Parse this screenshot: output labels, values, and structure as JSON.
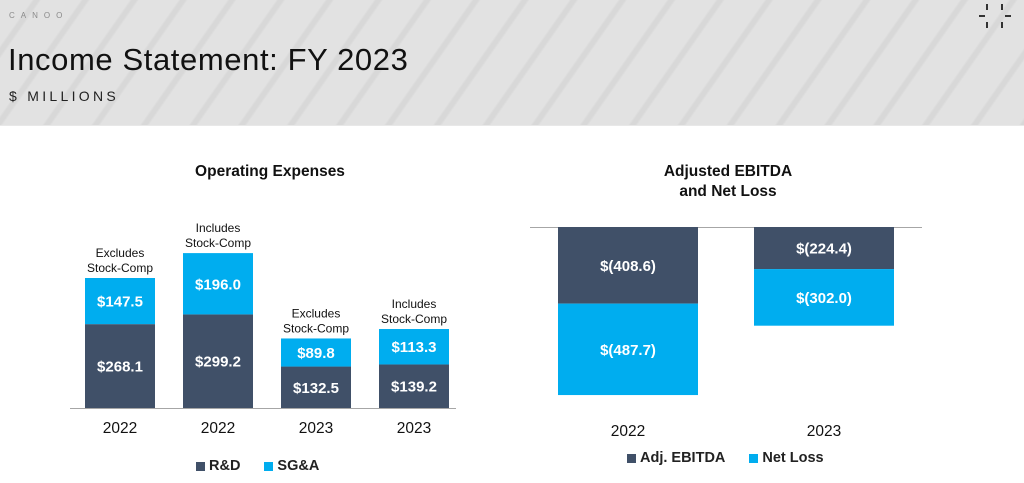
{
  "header": {
    "brand": "CANOO",
    "title": "Income Statement: FY 2023",
    "subtitle": "$ MILLIONS"
  },
  "colors": {
    "dark": "#405068",
    "light": "#00adef",
    "header_bg": "#e2e2e2"
  },
  "chart_data": [
    {
      "type": "bar",
      "stacked": true,
      "title": "Operating Expenses",
      "categories": [
        "2022",
        "2022",
        "2023",
        "2023"
      ],
      "annotations": [
        [
          "Excludes",
          "Stock-Comp"
        ],
        [
          "Includes",
          "Stock-Comp"
        ],
        [
          "Excludes",
          "Stock-Comp"
        ],
        [
          "Includes",
          "Stock-Comp"
        ]
      ],
      "series": [
        {
          "name": "R&D",
          "color": "#405068",
          "values": [
            268.1,
            299.2,
            132.5,
            139.2
          ],
          "labels": [
            "$268.1",
            "$299.2",
            "$132.5",
            "$139.2"
          ]
        },
        {
          "name": "SG&A",
          "color": "#00adef",
          "values": [
            147.5,
            196.0,
            89.8,
            113.3
          ],
          "labels": [
            "$147.5",
            "$196.0",
            "$89.8",
            "$113.3"
          ]
        }
      ],
      "xlabel": "",
      "ylabel": "",
      "grid": false,
      "legend": "bottom-center"
    },
    {
      "type": "bar",
      "stacked": true,
      "title": [
        "Adjusted EBITDA",
        "and Net Loss"
      ],
      "categories": [
        "2022",
        "2023"
      ],
      "series": [
        {
          "name": "Adj. EBITDA",
          "color": "#405068",
          "values": [
            -408.6,
            -224.4
          ],
          "labels": [
            "$(408.6)",
            "$(224.4)"
          ]
        },
        {
          "name": "Net Loss",
          "color": "#00adef",
          "values": [
            -487.7,
            -302.0
          ],
          "labels": [
            "$(487.7)",
            "$(302.0)"
          ]
        }
      ],
      "xlabel": "",
      "ylabel": "",
      "grid": false,
      "legend": "bottom-center"
    }
  ]
}
